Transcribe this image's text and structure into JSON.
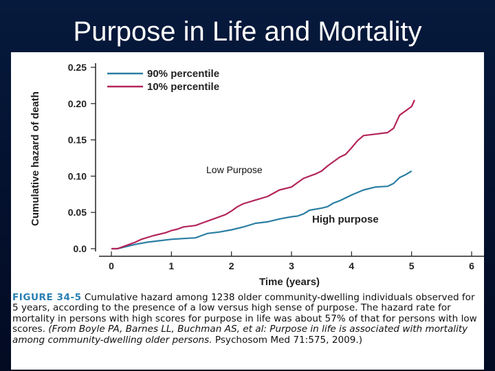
{
  "slide": {
    "title": "Purpose in Life and Mortality"
  },
  "figure": {
    "caption_label": "FIGURE 34-5",
    "caption_text": " Cumulative hazard among 1238 older community-dwelling individuals observed for 5 years, according to the presence of a low versus high sense of purpose. The hazard rate for mortality in persons with high scores for purpose in life was about 57% of that for persons with low scores. ",
    "caption_citation": "(From Boyle PA, Barnes LL, Buchman AS, et al: Purpose in life is associated with mortality among community-dwelling older persons.",
    "caption_source": " Psychosom Med 71:575, 2009.)"
  },
  "annotations": {
    "low_purpose": "Low Purpose",
    "high_purpose": "High purpose"
  },
  "colors": {
    "series_90": "#2a7ea3",
    "series_10": "#b3245a",
    "axis": "#222222",
    "caption_label": "#2a7fb3"
  },
  "chart_data": {
    "type": "line",
    "title": "",
    "xlabel": "Time (years)",
    "ylabel": "Cumulative hazard of death",
    "xlim": [
      0,
      6
    ],
    "ylim": [
      0,
      0.25
    ],
    "xticks": [
      0,
      1,
      2,
      3,
      4,
      5,
      6
    ],
    "yticks": [
      0.0,
      0.05,
      0.1,
      0.15,
      0.2,
      0.25
    ],
    "ytick_labels": [
      "0.0",
      "0.05",
      "0.10",
      "0.15",
      "0.20",
      "0.25"
    ],
    "grid": false,
    "legend_position": "top-left",
    "series": [
      {
        "name": "90% percentile",
        "points": [
          [
            0.0,
            0.0
          ],
          [
            0.1,
            0.0
          ],
          [
            0.2,
            0.002
          ],
          [
            0.3,
            0.004
          ],
          [
            0.4,
            0.006
          ],
          [
            0.6,
            0.009
          ],
          [
            0.8,
            0.011
          ],
          [
            1.0,
            0.013
          ],
          [
            1.2,
            0.014
          ],
          [
            1.4,
            0.015
          ],
          [
            1.5,
            0.018
          ],
          [
            1.6,
            0.021
          ],
          [
            1.8,
            0.023
          ],
          [
            2.0,
            0.026
          ],
          [
            2.2,
            0.03
          ],
          [
            2.4,
            0.035
          ],
          [
            2.6,
            0.037
          ],
          [
            2.8,
            0.041
          ],
          [
            3.0,
            0.044
          ],
          [
            3.1,
            0.045
          ],
          [
            3.2,
            0.048
          ],
          [
            3.3,
            0.053
          ],
          [
            3.5,
            0.056
          ],
          [
            3.6,
            0.058
          ],
          [
            3.7,
            0.063
          ],
          [
            3.8,
            0.066
          ],
          [
            4.0,
            0.074
          ],
          [
            4.2,
            0.081
          ],
          [
            4.4,
            0.085
          ],
          [
            4.6,
            0.086
          ],
          [
            4.7,
            0.09
          ],
          [
            4.8,
            0.098
          ],
          [
            4.9,
            0.102
          ],
          [
            5.0,
            0.107
          ]
        ]
      },
      {
        "name": "10% percentile",
        "points": [
          [
            0.0,
            0.0
          ],
          [
            0.1,
            0.0
          ],
          [
            0.2,
            0.003
          ],
          [
            0.3,
            0.006
          ],
          [
            0.4,
            0.009
          ],
          [
            0.5,
            0.013
          ],
          [
            0.7,
            0.018
          ],
          [
            0.9,
            0.022
          ],
          [
            1.0,
            0.025
          ],
          [
            1.1,
            0.027
          ],
          [
            1.2,
            0.03
          ],
          [
            1.4,
            0.032
          ],
          [
            1.5,
            0.035
          ],
          [
            1.7,
            0.041
          ],
          [
            1.9,
            0.047
          ],
          [
            2.0,
            0.052
          ],
          [
            2.1,
            0.058
          ],
          [
            2.2,
            0.062
          ],
          [
            2.4,
            0.067
          ],
          [
            2.6,
            0.072
          ],
          [
            2.8,
            0.081
          ],
          [
            3.0,
            0.085
          ],
          [
            3.1,
            0.091
          ],
          [
            3.2,
            0.097
          ],
          [
            3.4,
            0.103
          ],
          [
            3.5,
            0.107
          ],
          [
            3.6,
            0.114
          ],
          [
            3.8,
            0.126
          ],
          [
            3.9,
            0.13
          ],
          [
            4.0,
            0.139
          ],
          [
            4.1,
            0.149
          ],
          [
            4.2,
            0.156
          ],
          [
            4.4,
            0.158
          ],
          [
            4.6,
            0.16
          ],
          [
            4.7,
            0.166
          ],
          [
            4.8,
            0.184
          ],
          [
            5.0,
            0.196
          ],
          [
            5.05,
            0.205
          ]
        ]
      }
    ]
  }
}
